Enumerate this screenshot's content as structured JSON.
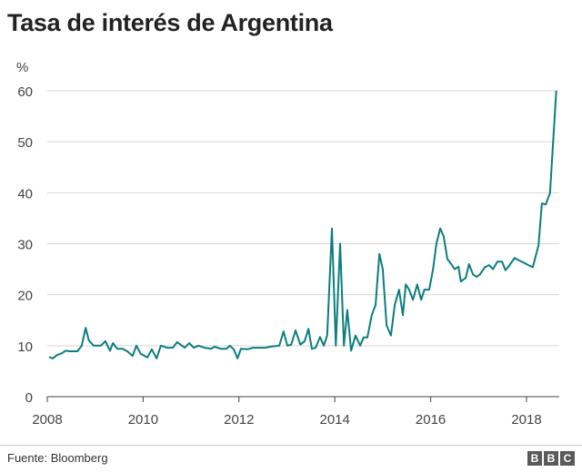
{
  "chart_data": {
    "type": "line",
    "title": "Tasa de interés de Argentina",
    "ylabel": "%",
    "xlabel": "",
    "ylim": [
      0,
      60
    ],
    "xlim": [
      2008,
      2018.65
    ],
    "yticks": [
      0,
      10,
      20,
      30,
      40,
      50,
      60
    ],
    "xticks": [
      2008,
      2010,
      2012,
      2014,
      2016,
      2018
    ],
    "grid": true,
    "color": "#0d7d7d",
    "series": [
      {
        "name": "Tasa de interés",
        "points": [
          [
            2008.04,
            7.8
          ],
          [
            2008.11,
            7.5
          ],
          [
            2008.21,
            8.2
          ],
          [
            2008.3,
            8.5
          ],
          [
            2008.38,
            9
          ],
          [
            2008.47,
            8.9
          ],
          [
            2008.63,
            8.9
          ],
          [
            2008.72,
            10
          ],
          [
            2008.8,
            13.5
          ],
          [
            2008.87,
            11
          ],
          [
            2008.97,
            10
          ],
          [
            2009.12,
            10
          ],
          [
            2009.21,
            10.9
          ],
          [
            2009.31,
            9
          ],
          [
            2009.37,
            10.5
          ],
          [
            2009.46,
            9.4
          ],
          [
            2009.57,
            9.4
          ],
          [
            2009.67,
            8.9
          ],
          [
            2009.78,
            8
          ],
          [
            2009.86,
            10
          ],
          [
            2009.95,
            8.4
          ],
          [
            2010.09,
            7.7
          ],
          [
            2010.18,
            9.3
          ],
          [
            2010.28,
            7.5
          ],
          [
            2010.37,
            10
          ],
          [
            2010.5,
            9.6
          ],
          [
            2010.62,
            9.6
          ],
          [
            2010.71,
            10.7
          ],
          [
            2010.87,
            9.6
          ],
          [
            2010.96,
            10.5
          ],
          [
            2011.06,
            9.6
          ],
          [
            2011.15,
            10
          ],
          [
            2011.28,
            9.6
          ],
          [
            2011.42,
            9.4
          ],
          [
            2011.49,
            9.8
          ],
          [
            2011.62,
            9.4
          ],
          [
            2011.74,
            9.4
          ],
          [
            2011.81,
            10
          ],
          [
            2011.89,
            9.3
          ],
          [
            2011.97,
            7.5
          ],
          [
            2012.04,
            9.4
          ],
          [
            2012.17,
            9.3
          ],
          [
            2012.29,
            9.6
          ],
          [
            2012.55,
            9.6
          ],
          [
            2012.65,
            9.8
          ],
          [
            2012.84,
            10
          ],
          [
            2012.93,
            12.8
          ],
          [
            2013.01,
            10
          ],
          [
            2013.09,
            10.2
          ],
          [
            2013.18,
            13
          ],
          [
            2013.28,
            10.2
          ],
          [
            2013.37,
            10.9
          ],
          [
            2013.45,
            13.3
          ],
          [
            2013.52,
            9.4
          ],
          [
            2013.6,
            9.6
          ],
          [
            2013.69,
            11.7
          ],
          [
            2013.77,
            10
          ],
          [
            2013.84,
            12
          ],
          [
            2013.94,
            33
          ],
          [
            2014.02,
            10
          ],
          [
            2014.11,
            30
          ],
          [
            2014.19,
            10
          ],
          [
            2014.26,
            17
          ],
          [
            2014.34,
            9
          ],
          [
            2014.43,
            12
          ],
          [
            2014.53,
            10
          ],
          [
            2014.6,
            11.6
          ],
          [
            2014.68,
            11.6
          ],
          [
            2014.77,
            16
          ],
          [
            2014.85,
            18
          ],
          [
            2014.93,
            28
          ],
          [
            2015.0,
            25
          ],
          [
            2015.08,
            14
          ],
          [
            2015.17,
            12
          ],
          [
            2015.25,
            18
          ],
          [
            2015.34,
            21
          ],
          [
            2015.42,
            16
          ],
          [
            2015.48,
            22
          ],
          [
            2015.55,
            21
          ],
          [
            2015.63,
            19
          ],
          [
            2015.72,
            22
          ],
          [
            2015.8,
            19
          ],
          [
            2015.87,
            21
          ],
          [
            2015.97,
            21
          ],
          [
            2016.05,
            25
          ],
          [
            2016.12,
            30
          ],
          [
            2016.2,
            33
          ],
          [
            2016.27,
            31.5
          ],
          [
            2016.35,
            27
          ],
          [
            2016.43,
            26
          ],
          [
            2016.5,
            25
          ],
          [
            2016.58,
            25.5
          ],
          [
            2016.63,
            22.6
          ],
          [
            2016.73,
            23.3
          ],
          [
            2016.8,
            26
          ],
          [
            2016.88,
            24
          ],
          [
            2016.96,
            23.5
          ],
          [
            2017.03,
            24
          ],
          [
            2017.13,
            25.4
          ],
          [
            2017.22,
            25.8
          ],
          [
            2017.3,
            25
          ],
          [
            2017.39,
            26.5
          ],
          [
            2017.49,
            26.5
          ],
          [
            2017.56,
            24.8
          ],
          [
            2017.64,
            25.7
          ],
          [
            2017.75,
            27.2
          ],
          [
            2017.85,
            26.7
          ],
          [
            2017.94,
            26.3
          ],
          [
            2018.06,
            25.7
          ],
          [
            2018.13,
            25.4
          ],
          [
            2018.25,
            29.7
          ],
          [
            2018.32,
            37.9
          ],
          [
            2018.4,
            37.7
          ],
          [
            2018.49,
            39.9
          ],
          [
            2018.62,
            60
          ]
        ]
      }
    ]
  },
  "footer": {
    "source": "Fuente: Bloomberg",
    "logo": [
      "B",
      "B",
      "C"
    ]
  }
}
